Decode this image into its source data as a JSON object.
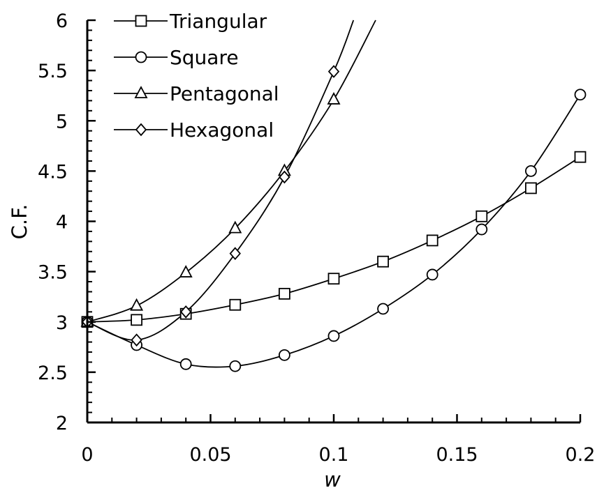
{
  "chart_data": {
    "type": "line",
    "title": "",
    "xlabel": "w",
    "ylabel": "C.F.",
    "xlim": [
      0,
      0.2
    ],
    "ylim": [
      2,
      6
    ],
    "x_ticks": [
      "0",
      "0.05",
      "0.1",
      "0.15",
      "0.2"
    ],
    "y_ticks": [
      "2",
      "2.5",
      "3",
      "3.5",
      "4",
      "4.5",
      "5",
      "5.5",
      "6"
    ],
    "grid": false,
    "legend_position": "top-left",
    "series": [
      {
        "name": "Triangular",
        "marker": "square",
        "x": [
          0,
          0.02,
          0.04,
          0.06,
          0.08,
          0.1,
          0.12,
          0.14,
          0.16,
          0.18,
          0.2
        ],
        "y": [
          3.0,
          3.02,
          3.08,
          3.17,
          3.28,
          3.43,
          3.6,
          3.81,
          4.05,
          4.33,
          4.64
        ]
      },
      {
        "name": "Square",
        "marker": "circle",
        "x": [
          0,
          0.02,
          0.04,
          0.06,
          0.08,
          0.1,
          0.12,
          0.14,
          0.16,
          0.18,
          0.2
        ],
        "y": [
          3.0,
          2.77,
          2.58,
          2.56,
          2.67,
          2.86,
          3.13,
          3.47,
          3.92,
          4.5,
          5.26
        ]
      },
      {
        "name": "Pentagonal",
        "marker": "triangle",
        "x": [
          0,
          0.02,
          0.04,
          0.06,
          0.08,
          0.1
        ],
        "y": [
          3.0,
          3.16,
          3.49,
          3.93,
          4.5,
          5.21
        ],
        "continues_offscale_to": [
          0.117,
          6.0
        ]
      },
      {
        "name": "Hexagonal",
        "marker": "diamond",
        "x": [
          0,
          0.02,
          0.04,
          0.06,
          0.08,
          0.1
        ],
        "y": [
          3.0,
          2.82,
          3.1,
          3.68,
          4.44,
          5.49
        ],
        "continues_offscale_to": [
          0.108,
          6.0
        ]
      }
    ]
  }
}
